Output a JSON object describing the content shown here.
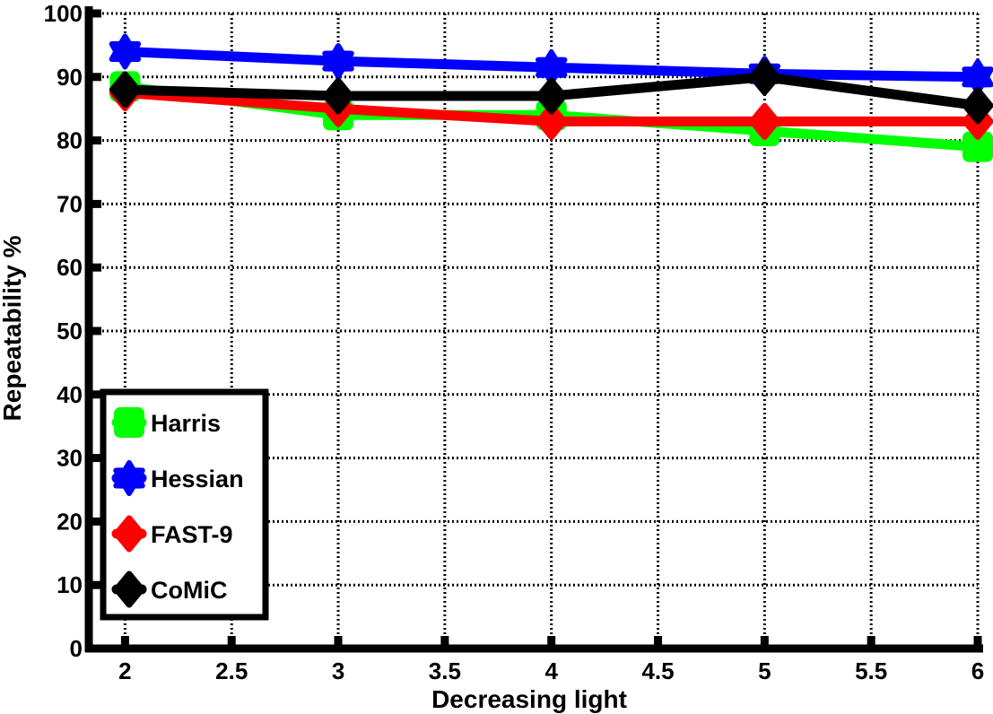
{
  "chart_data": {
    "type": "line",
    "title": "",
    "xlabel": "Decreasing light",
    "ylabel": "Repeatability %",
    "xlim": [
      1.83,
      6.0
    ],
    "ylim": [
      0,
      100
    ],
    "xticks": [
      2,
      2.5,
      3,
      3.5,
      4,
      4.5,
      5,
      5.5,
      6
    ],
    "xtick_labels": [
      "2",
      "2.5",
      "3",
      "3.5",
      "4",
      "4.5",
      "5",
      "5.5",
      "6"
    ],
    "yticks": [
      0,
      10,
      20,
      30,
      40,
      50,
      60,
      70,
      80,
      90,
      100
    ],
    "ytick_labels": [
      "0",
      "10",
      "20",
      "30",
      "40",
      "50",
      "60",
      "70",
      "80",
      "90",
      "100"
    ],
    "grid": true,
    "legend_position": "lower-left",
    "x": [
      2,
      3,
      4,
      5,
      6
    ],
    "series": [
      {
        "name": "Harris",
        "color": "#00ff00",
        "marker": "square",
        "values": [
          88.5,
          84.0,
          84.0,
          81.5,
          79.0
        ]
      },
      {
        "name": "Hessian",
        "color": "#0000ff",
        "marker": "hexagram",
        "values": [
          94.0,
          92.5,
          91.5,
          90.5,
          90.0
        ]
      },
      {
        "name": "FAST-9",
        "color": "#ff0000",
        "marker": "diamond",
        "values": [
          87.5,
          85.0,
          83.0,
          83.0,
          83.0
        ]
      },
      {
        "name": "CoMiC",
        "color": "#000000",
        "marker": "diamond",
        "values": [
          88.0,
          87.0,
          87.0,
          90.0,
          85.5
        ]
      }
    ]
  }
}
